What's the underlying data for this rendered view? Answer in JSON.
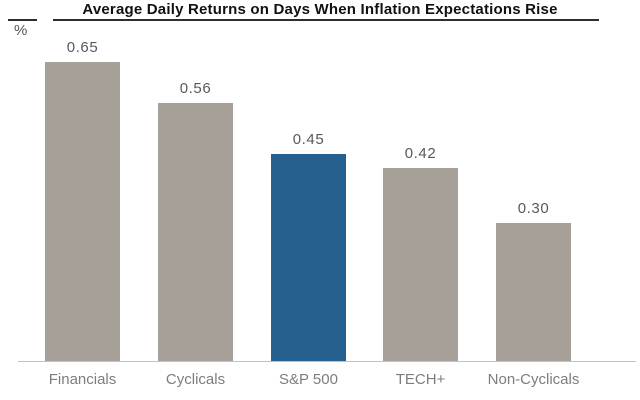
{
  "chart_data": {
    "type": "bar",
    "title": "Average Daily Returns on Days When Inflation Expectations Rise",
    "ylabel": "%",
    "xlabel": "",
    "categories": [
      "Financials",
      "Cyclicals",
      "S&P 500",
      "TECH+",
      "Non-Cyclicals"
    ],
    "values": [
      0.65,
      0.56,
      0.45,
      0.42,
      0.3
    ],
    "value_labels": [
      "0.65",
      "0.56",
      "0.45",
      "0.42",
      "0.30"
    ],
    "ylim": [
      0,
      0.75
    ],
    "grid": false,
    "legend": false,
    "y_axis_ticks_visible": false,
    "highlight_index": 2,
    "colors": {
      "bar_default": "#a6a099",
      "bar_highlight": "#26608e",
      "axis_line": "#c2c2c2",
      "title_rule": "#2e2e2e",
      "title_text": "#111111",
      "value_label": "#595959",
      "category_label": "#7d7d7d",
      "unit_label": "#565656"
    }
  }
}
